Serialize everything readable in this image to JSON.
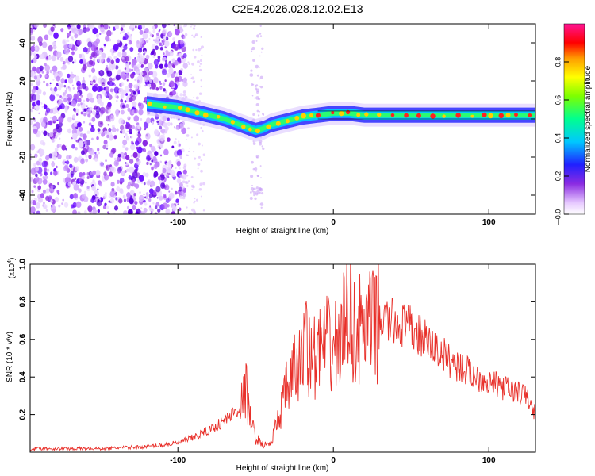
{
  "figure_title": "C2E4.2026.028.12.02.E13",
  "chart_data": [
    {
      "type": "heatmap",
      "xlabel": "Height of straight line (km)",
      "ylabel": "Frequency (Hz)",
      "xlim": [
        -195,
        130
      ],
      "ylim": [
        -50,
        50
      ],
      "x_ticks": [
        -100,
        0,
        100
      ],
      "y_ticks": [
        -40,
        -20,
        0,
        20,
        40
      ],
      "colorbar": {
        "label": "Normalized spectral amplitude",
        "range": [
          0.0,
          1.0
        ],
        "ticks": [
          "0.0",
          "0.2",
          "0.4",
          "0.6",
          "0.8"
        ]
      },
      "ridge_track": {
        "x": [
          -120,
          -110,
          -100,
          -90,
          -80,
          -70,
          -60,
          -50,
          -45,
          -40,
          -30,
          -20,
          -10,
          0,
          10,
          20,
          40,
          60,
          80,
          100,
          130
        ],
        "y": [
          8,
          7,
          6,
          4,
          2,
          0,
          -3,
          -6,
          -5,
          -3,
          -1,
          1,
          2,
          3,
          3,
          2,
          2,
          2,
          2,
          2,
          2
        ]
      }
    },
    {
      "type": "line",
      "xlabel": "Height of straight line (km)",
      "ylabel": "SNR (10 * v/v)",
      "y_scale_label": "(x10",
      "y_scale_exponent": "4",
      "xlim": [
        -195,
        130
      ],
      "ylim": [
        0,
        1.0
      ],
      "x_ticks": [
        -100,
        0,
        100
      ],
      "y_ticks": [
        "0.2",
        "0.4",
        "0.6",
        "0.8",
        "1.0"
      ],
      "series": [
        {
          "name": "SNR",
          "color": "#e8302a",
          "x": [
            -195,
            -150,
            -120,
            -100,
            -90,
            -80,
            -70,
            -60,
            -56,
            -54,
            -50,
            -45,
            -40,
            -35,
            -30,
            -25,
            -20,
            -18,
            -15,
            -10,
            -5,
            0,
            5,
            9,
            10,
            12,
            15,
            20,
            30,
            40,
            50,
            60,
            70,
            80,
            90,
            100,
            110,
            120,
            125,
            128,
            130
          ],
          "y": [
            0.02,
            0.02,
            0.03,
            0.05,
            0.08,
            0.12,
            0.17,
            0.25,
            0.35,
            0.2,
            0.08,
            0.04,
            0.05,
            0.2,
            0.35,
            0.45,
            0.5,
            0.78,
            0.5,
            0.55,
            0.6,
            0.58,
            0.62,
            0.8,
            1.0,
            0.7,
            0.68,
            0.68,
            0.72,
            0.7,
            0.67,
            0.6,
            0.53,
            0.47,
            0.42,
            0.38,
            0.35,
            0.32,
            0.3,
            0.22,
            0.22
          ]
        }
      ]
    }
  ]
}
